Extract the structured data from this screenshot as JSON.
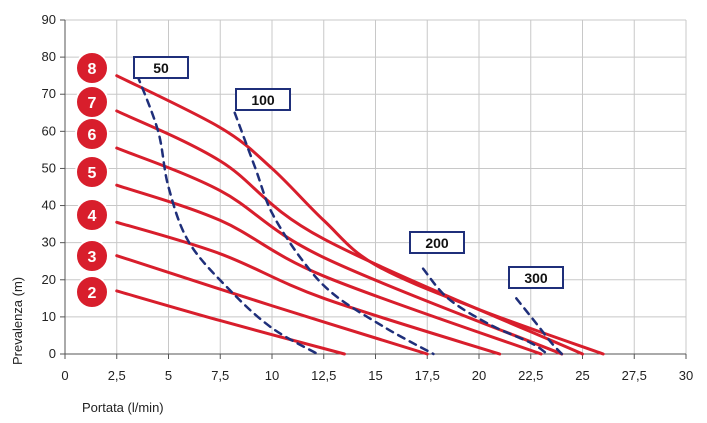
{
  "chart_data": {
    "type": "line",
    "xlabel": "Portata (l/min)",
    "ylabel": "Prevalenza (m)",
    "xlim": [
      0,
      30
    ],
    "ylim": [
      0,
      90
    ],
    "x_ticks": [
      0,
      2.5,
      5,
      7.5,
      10,
      12.5,
      15,
      17.5,
      20,
      22.5,
      25,
      27.5,
      30
    ],
    "x_tick_labels": [
      "0",
      "2,5",
      "5",
      "7,5",
      "10",
      "12,5",
      "15",
      "17,5",
      "20",
      "22,5",
      "25",
      "27,5",
      "30"
    ],
    "y_ticks": [
      0,
      10,
      20,
      30,
      40,
      50,
      60,
      70,
      80,
      90
    ],
    "y_tick_labels": [
      "0",
      "10",
      "20",
      "30",
      "40",
      "50",
      "60",
      "70",
      "80",
      "90"
    ],
    "grid": true,
    "curve_color": "#d81e2c",
    "rpm_line_color": "#1f2f7a",
    "series": [
      {
        "name": "2",
        "x": [
          2.5,
          7.5,
          13.5
        ],
        "y": [
          17,
          9,
          0
        ]
      },
      {
        "name": "3",
        "x": [
          2.5,
          10,
          17.5
        ],
        "y": [
          26.5,
          13,
          0
        ]
      },
      {
        "name": "4",
        "x": [
          2.5,
          7.5,
          12.5,
          21
        ],
        "y": [
          35.5,
          27,
          15,
          0
        ]
      },
      {
        "name": "5",
        "x": [
          2.5,
          7.5,
          12.5,
          23
        ],
        "y": [
          45.5,
          36,
          21,
          0
        ]
      },
      {
        "name": "6",
        "x": [
          2.5,
          7.5,
          12.5,
          24
        ],
        "y": [
          55.5,
          44,
          26,
          0
        ]
      },
      {
        "name": "7",
        "x": [
          2.5,
          7.5,
          12.5,
          25
        ],
        "y": [
          65.5,
          52,
          31,
          0
        ]
      },
      {
        "name": "8",
        "x": [
          2.5,
          7.5,
          10,
          12.5,
          15,
          20,
          26
        ],
        "y": [
          75,
          61,
          50,
          36,
          24,
          12,
          0
        ]
      }
    ],
    "rpm_lines": [
      {
        "label": "50",
        "x": [
          3.5,
          4.5,
          5,
          6,
          8,
          10,
          12.2
        ],
        "y": [
          75,
          60,
          45,
          30,
          17,
          7,
          0
        ]
      },
      {
        "label": "100",
        "x": [
          8.2,
          9.2,
          10,
          11.5,
          13,
          15.5,
          17.8
        ],
        "y": [
          65,
          50,
          38,
          25,
          16,
          7,
          0
        ]
      },
      {
        "label": "200",
        "x": [
          17.3,
          18.5,
          20.5,
          22.5,
          23.3
        ],
        "y": [
          23,
          15,
          8,
          3,
          0
        ]
      },
      {
        "label": "300",
        "x": [
          21.8,
          22.8,
          23.5,
          24
        ],
        "y": [
          15,
          8,
          3,
          0
        ]
      }
    ]
  },
  "stages": [
    "8",
    "7",
    "6",
    "5",
    "4",
    "3",
    "2"
  ],
  "rpm_labels": [
    "50",
    "100",
    "200",
    "300"
  ]
}
